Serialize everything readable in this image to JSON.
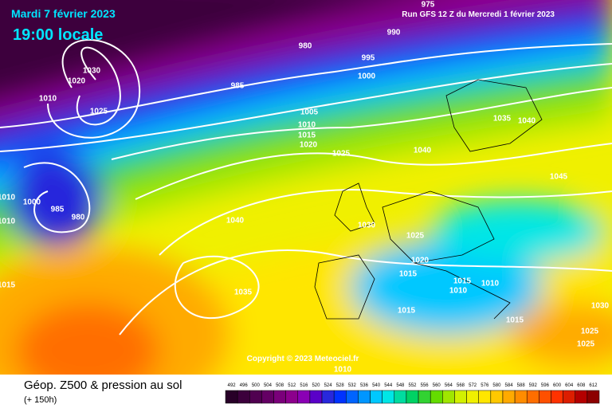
{
  "header": {
    "date": "Mardi 7 février 2023",
    "time": "19:00 locale",
    "run": "Run GFS 12 Z du Mercredi 1 février 2023"
  },
  "copyright": "Copyright © 2023 Meteociel.fr",
  "footer": {
    "title": "Géop. Z500 & pression au sol",
    "lead": "(+ 150h)"
  },
  "isobars": {
    "labels": [
      "980",
      "990",
      "975",
      "995",
      "1000",
      "985",
      "1005",
      "1010",
      "1015",
      "1020",
      "1025",
      "1030",
      "1020",
      "1010",
      "1025",
      "1040",
      "1035",
      "1040",
      "1045",
      "1000",
      "985",
      "980",
      "1040",
      "1030",
      "1025",
      "1020",
      "1015",
      "1015",
      "1010",
      "1010",
      "1035",
      "1015",
      "1015",
      "1030",
      "1025",
      "1025",
      "1010",
      "1015",
      "1010",
      "1010"
    ]
  },
  "scale": {
    "labels": [
      492,
      496,
      500,
      504,
      508,
      512,
      516,
      520,
      524,
      528,
      532,
      536,
      540,
      544,
      548,
      552,
      556,
      560,
      564,
      568,
      572,
      576,
      580,
      584,
      588,
      592,
      596,
      600,
      604,
      608,
      612
    ],
    "colors": [
      "#280028",
      "#3c003c",
      "#500050",
      "#640064",
      "#7a007a",
      "#8c008c",
      "#8a00b4",
      "#5a00c8",
      "#2828dc",
      "#0032ff",
      "#0064ff",
      "#0096ff",
      "#00c8ff",
      "#00e6e6",
      "#00dca0",
      "#00d264",
      "#32d232",
      "#64dc00",
      "#a0e600",
      "#d2f000",
      "#f0f000",
      "#ffe600",
      "#ffc800",
      "#ffaa00",
      "#ff8c00",
      "#ff6e00",
      "#ff5000",
      "#ff3200",
      "#dc1e00",
      "#b40000",
      "#8c0000"
    ]
  }
}
